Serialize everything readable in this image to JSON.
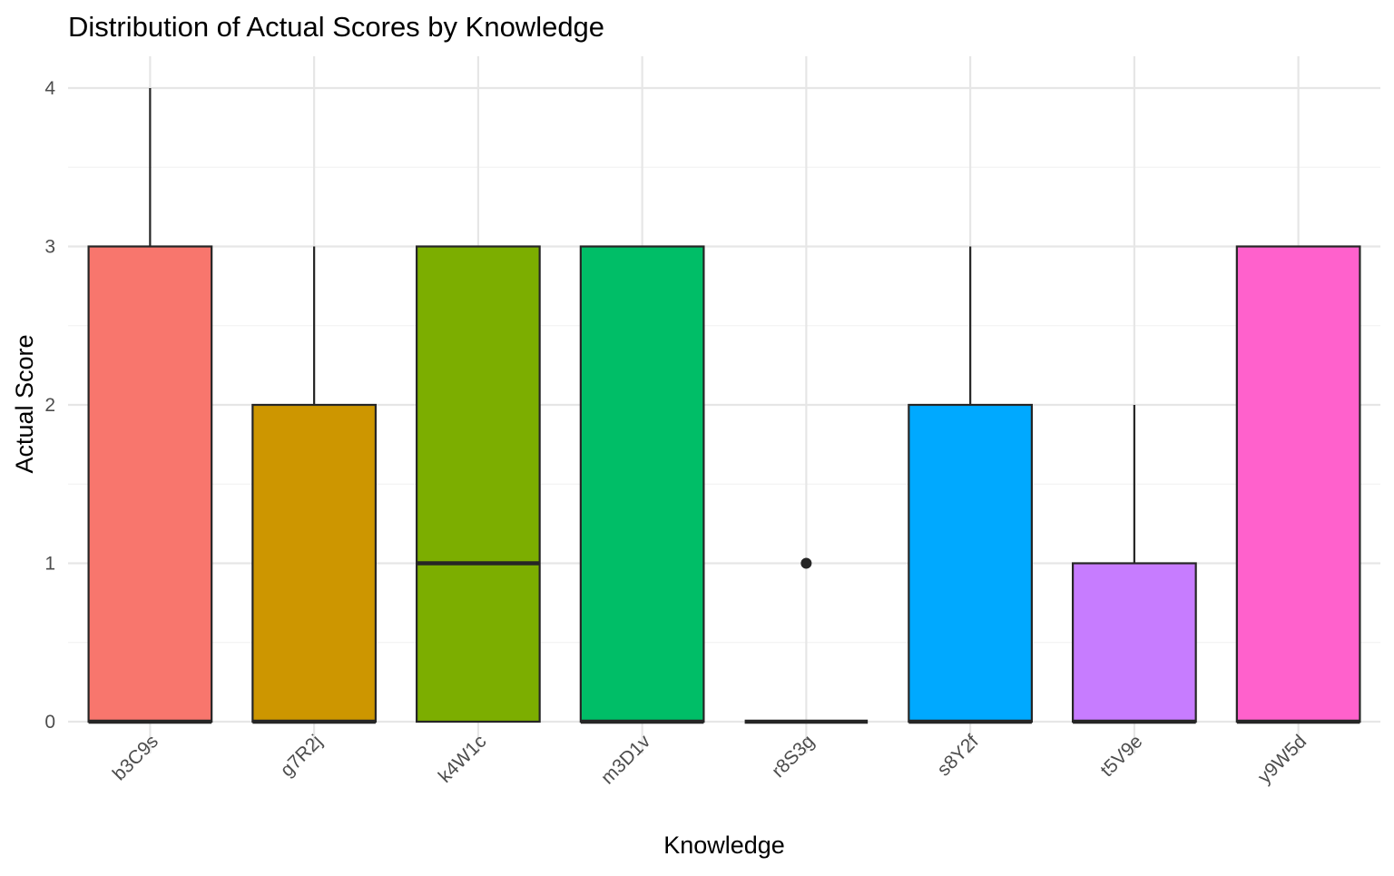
{
  "chart_data": {
    "type": "box",
    "title": "Distribution of Actual Scores by Knowledge",
    "xlabel": "Knowledge",
    "ylabel": "Actual Score",
    "ylim": [
      -0.1,
      4.2
    ],
    "yticks": [
      0,
      1,
      2,
      3,
      4
    ],
    "grid": true,
    "legend": "none",
    "categories": [
      "b3C9s",
      "g7R2j",
      "k4W1c",
      "m3D1v",
      "r8S3g",
      "s8Y2f",
      "t5V9e",
      "y9W5d"
    ],
    "boxes": [
      {
        "category": "b3C9s",
        "min": 0,
        "q1": 0,
        "median": 0,
        "q3": 3,
        "max": 4,
        "outliers": [],
        "color": "#F8766D"
      },
      {
        "category": "g7R2j",
        "min": 0,
        "q1": 0,
        "median": 0,
        "q3": 2,
        "max": 3,
        "outliers": [],
        "color": "#CD9600"
      },
      {
        "category": "k4W1c",
        "min": 0,
        "q1": 0,
        "median": 1,
        "q3": 3,
        "max": 3,
        "outliers": [],
        "color": "#7CAE00"
      },
      {
        "category": "m3D1v",
        "min": 0,
        "q1": 0,
        "median": 0,
        "q3": 3,
        "max": 3,
        "outliers": [],
        "color": "#00BE67"
      },
      {
        "category": "r8S3g",
        "min": 0,
        "q1": 0,
        "median": 0,
        "q3": 0,
        "max": 0,
        "outliers": [
          1
        ],
        "color": "#00BFC4"
      },
      {
        "category": "s8Y2f",
        "min": 0,
        "q1": 0,
        "median": 0,
        "q3": 2,
        "max": 3,
        "outliers": [],
        "color": "#00A9FF"
      },
      {
        "category": "t5V9e",
        "min": 0,
        "q1": 0,
        "median": 0,
        "q3": 1,
        "max": 2,
        "outliers": [],
        "color": "#C77CFF"
      },
      {
        "category": "y9W5d",
        "min": 0,
        "q1": 0,
        "median": 0,
        "q3": 3,
        "max": 3,
        "outliers": [],
        "color": "#FF61CC"
      }
    ]
  }
}
